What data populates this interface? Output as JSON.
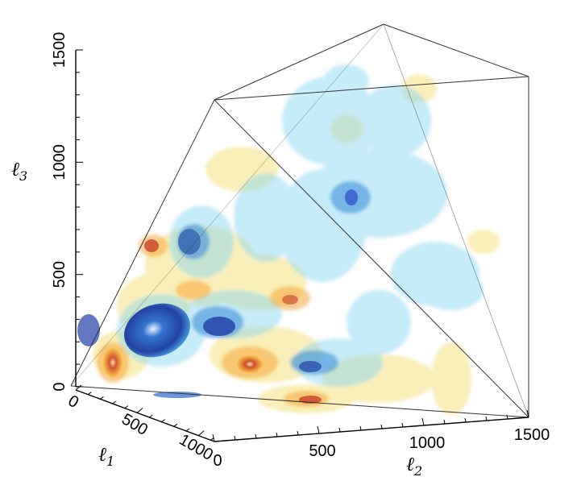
{
  "chart_data": {
    "type": "3d-isosurface",
    "title": "",
    "axes": {
      "x": {
        "label": "ℓ",
        "subscript": "1",
        "range": [
          0,
          1500
        ],
        "ticks": [
          "0",
          "500",
          "1000"
        ]
      },
      "y": {
        "label": "ℓ",
        "subscript": "2",
        "range": [
          0,
          1500
        ],
        "ticks": [
          "500",
          "1000",
          "1500"
        ]
      },
      "z": {
        "label": "ℓ",
        "subscript": "3",
        "range": [
          0,
          1500
        ],
        "ticks": [
          "0",
          "500",
          "1000",
          "1500"
        ]
      }
    },
    "colors": {
      "positive_outer": "#f6df73",
      "positive_mid": "#f2a43a",
      "positive_core": "#c8402a",
      "negative_outer": "#7fd4f2",
      "negative_mid": "#3f8fd6",
      "negative_core": "#1f3fa6",
      "frame": "#333333"
    },
    "grid": false,
    "legend": "none"
  }
}
